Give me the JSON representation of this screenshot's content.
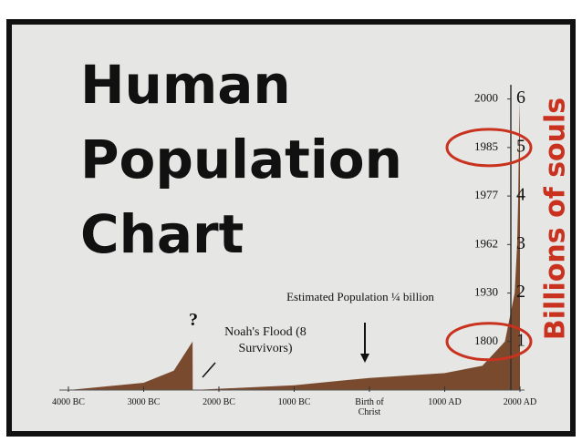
{
  "chart_data": {
    "type": "area",
    "title": "Human Population Chart",
    "y_label": "Billions of souls",
    "color": "#7a4a2e",
    "label_color": "#c8321e",
    "x": [
      -4000,
      -3000,
      -2600,
      -2350,
      -2348,
      -1000,
      0,
      1000,
      1500,
      1800,
      1930,
      1962,
      1977,
      1985,
      2000
    ],
    "values": [
      0,
      0.15,
      0.4,
      1.0,
      0,
      0.1,
      0.25,
      0.35,
      0.5,
      1,
      2,
      3,
      4,
      5,
      6
    ],
    "xlim": [
      -4000,
      2000
    ],
    "xticks": [
      {
        "value": -4000,
        "label": "4000 BC"
      },
      {
        "value": -3000,
        "label": "3000 BC"
      },
      {
        "value": -2000,
        "label": "2000 BC"
      },
      {
        "value": -1000,
        "label": "1000 BC"
      },
      {
        "value": 0,
        "label": "Birth of Christ"
      },
      {
        "value": 1000,
        "label": "1000 AD"
      },
      {
        "value": 2000,
        "label": "2000 AD"
      }
    ],
    "ylim": [
      0,
      6.2
    ],
    "yticks": [
      1,
      2,
      3,
      4,
      5,
      6
    ],
    "ytick_years": [
      1800,
      1930,
      1962,
      1977,
      1985,
      2000
    ],
    "annotations": [
      "?",
      "Noah's Flood (8 Survivors)",
      "Estimated Population ¼ billion"
    ]
  }
}
